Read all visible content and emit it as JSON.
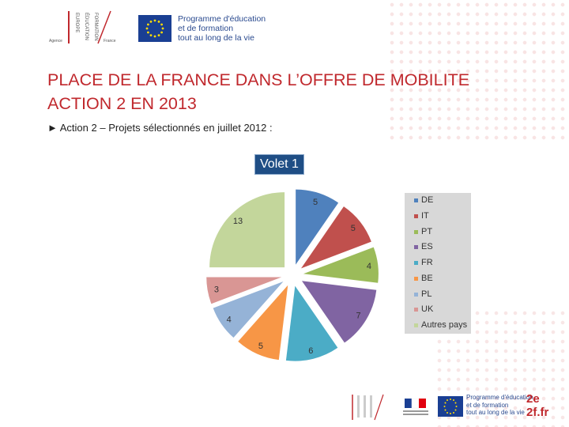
{
  "header": {
    "logo_agence_words": [
      "EUROPE",
      "ÉDUCATION",
      "FORMATION"
    ],
    "logo_agence_left": "Agence",
    "logo_agence_right": "France",
    "eu_program_lines": [
      "Programme d'éducation",
      "et de formation",
      "tout au long de la vie"
    ]
  },
  "title_lines": [
    "PLACE DE LA FRANCE DANS L’OFFRE DE MOBILITE",
    "ACTION 2 EN 2013"
  ],
  "subtitle": "► Action 2 – Projets sélectionnés en juillet 2012 :",
  "chart_data": {
    "type": "pie",
    "title": "Volet 1",
    "slices": [
      {
        "label": "DE",
        "value": 5,
        "color": "#4f81bd"
      },
      {
        "label": "IT",
        "value": 5,
        "color": "#c0504d"
      },
      {
        "label": "PT",
        "value": 4,
        "color": "#9bbb59"
      },
      {
        "label": "ES",
        "value": 7,
        "color": "#8064a2"
      },
      {
        "label": "FR",
        "value": 6,
        "color": "#4bacc6"
      },
      {
        "label": "BE",
        "value": 5,
        "color": "#f79646"
      },
      {
        "label": "PL",
        "value": 4,
        "color": "#95b3d7"
      },
      {
        "label": "UK",
        "value": 3,
        "color": "#d99694"
      },
      {
        "label": "Autres pays",
        "value": 13,
        "color": "#c3d69b"
      }
    ],
    "legend_position": "right"
  },
  "footer": {
    "program_lines": [
      "Programme d'éducation",
      "et de formation",
      "tout au long de la vie"
    ],
    "brand_top": "2e",
    "brand_bottom": "2f.fr"
  }
}
